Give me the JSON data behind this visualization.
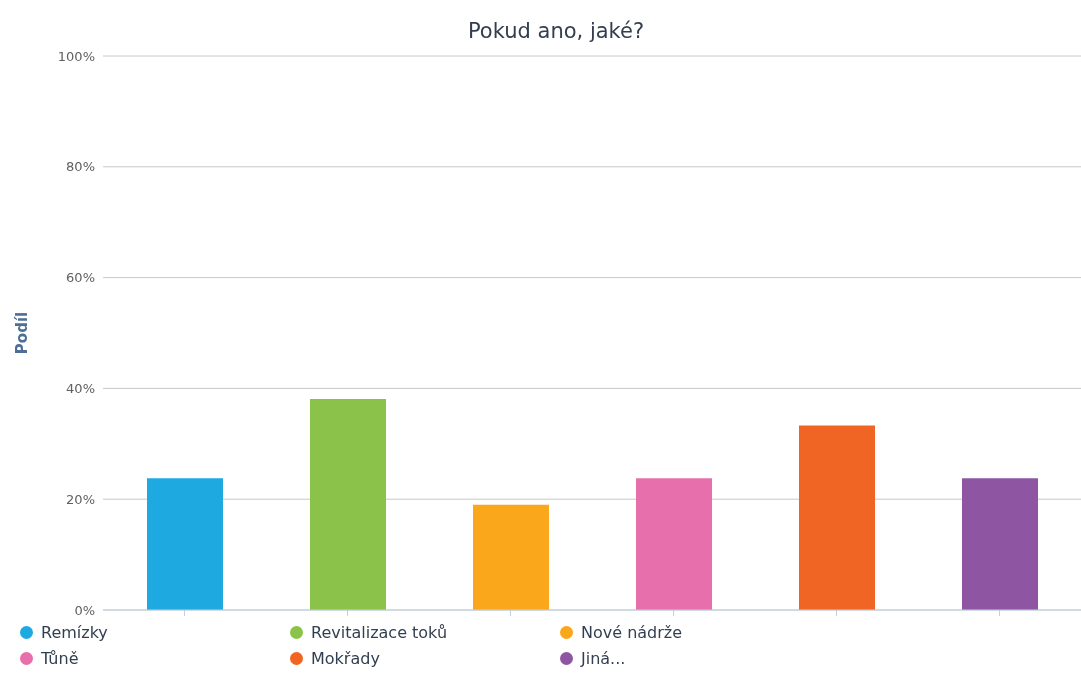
{
  "chart_data": {
    "type": "bar",
    "title": "Pokud ano, jaké?",
    "ylabel": "Podíl",
    "categories": [
      null,
      null,
      null,
      null,
      null,
      null
    ],
    "series": [
      {
        "name": "Remízky",
        "color": "#1fa9e1",
        "values": [
          23.8,
          null,
          null,
          null,
          null,
          null
        ]
      },
      {
        "name": "Revitalizace toků",
        "color": "#8bc34a",
        "values": [
          null,
          38.1,
          null,
          null,
          null,
          null
        ]
      },
      {
        "name": "Nové nádrže",
        "color": "#fba71b",
        "values": [
          null,
          null,
          19.0,
          null,
          null,
          null
        ]
      },
      {
        "name": "Tůně",
        "color": "#e76fab",
        "values": [
          null,
          null,
          null,
          23.8,
          null,
          null
        ]
      },
      {
        "name": "Mokřady",
        "color": "#f06524",
        "values": [
          null,
          null,
          null,
          null,
          33.3,
          null
        ]
      },
      {
        "name": "Jiná...",
        "color": "#8e55a3",
        "values": [
          null,
          null,
          null,
          null,
          null,
          23.8
        ]
      }
    ],
    "ylim": [
      0,
      100
    ],
    "yticks": [
      {
        "value": 0,
        "label": "0%"
      },
      {
        "value": 20,
        "label": "20%"
      },
      {
        "value": 40,
        "label": "40%"
      },
      {
        "value": 60,
        "label": "60%"
      },
      {
        "value": 80,
        "label": "80%"
      },
      {
        "value": 100,
        "label": "100%"
      }
    ],
    "grid": "y",
    "legend": "bottom left"
  }
}
